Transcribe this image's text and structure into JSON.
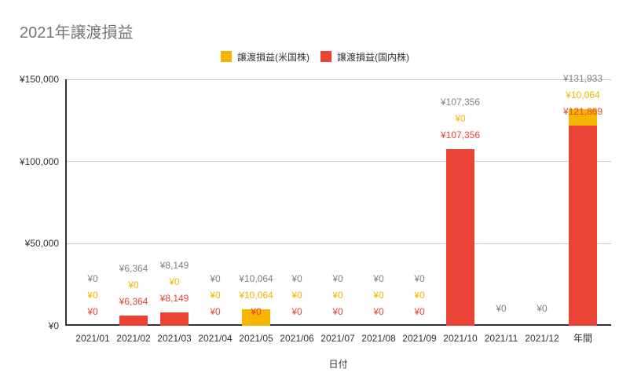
{
  "title": "2021年譲渡損益",
  "legend": [
    {
      "label": "譲渡損益(米国株)",
      "color": "#f4b400"
    },
    {
      "label": "譲渡損益(国内株)",
      "color": "#ea4335"
    }
  ],
  "colors": {
    "us_series": "#f4b400",
    "domestic_series": "#ea4335",
    "total_annotation": "#808080",
    "gridline": "#cccccc",
    "axis_line": "#333333",
    "axis_text": "#333333",
    "title_text": "#757575"
  },
  "chart_data": {
    "type": "bar",
    "stacked": true,
    "title": "2021年譲渡損益",
    "xlabel": "日付",
    "ylabel": "",
    "ylim": [
      0,
      150000
    ],
    "grid": true,
    "legend_position": "top",
    "yticks": [
      0,
      50000,
      100000,
      150000
    ],
    "ytick_labels": [
      "¥0",
      "¥50,000",
      "¥100,000",
      "¥150,000"
    ],
    "categories": [
      "2021/01",
      "2021/02",
      "2021/03",
      "2021/04",
      "2021/05",
      "2021/06",
      "2021/07",
      "2021/08",
      "2021/09",
      "2021/10",
      "2021/11",
      "2021/12",
      "年間"
    ],
    "series": [
      {
        "name": "譲渡損益(米国株)",
        "color": "#f4b400",
        "values": [
          0,
          0,
          0,
          0,
          10064,
          0,
          0,
          0,
          0,
          0,
          null,
          null,
          10064
        ]
      },
      {
        "name": "譲渡損益(国内株)",
        "color": "#ea4335",
        "values": [
          0,
          6364,
          8149,
          0,
          0,
          0,
          0,
          0,
          0,
          107356,
          null,
          null,
          121869
        ]
      }
    ],
    "totals": [
      0,
      6364,
      8149,
      0,
      10064,
      0,
      0,
      0,
      0,
      107356,
      0,
      0,
      131933
    ],
    "annotations": {
      "total_labels": [
        "¥0",
        "¥6,364",
        "¥8,149",
        "¥0",
        "¥10,064",
        "¥0",
        "¥0",
        "¥0",
        "¥0",
        "¥107,356",
        "¥0",
        "¥0",
        "¥131,933"
      ],
      "us_labels": [
        "¥0",
        "¥0",
        "¥0",
        "¥0",
        "¥10,064",
        "¥0",
        "¥0",
        "¥0",
        "¥0",
        "¥0",
        null,
        null,
        "¥10,064"
      ],
      "domestic_labels": [
        "¥0",
        "¥6,364",
        "¥8,149",
        "¥0",
        "¥0",
        "¥0",
        "¥0",
        "¥0",
        "¥0",
        "¥107,356",
        null,
        null,
        "¥121,869"
      ]
    }
  }
}
